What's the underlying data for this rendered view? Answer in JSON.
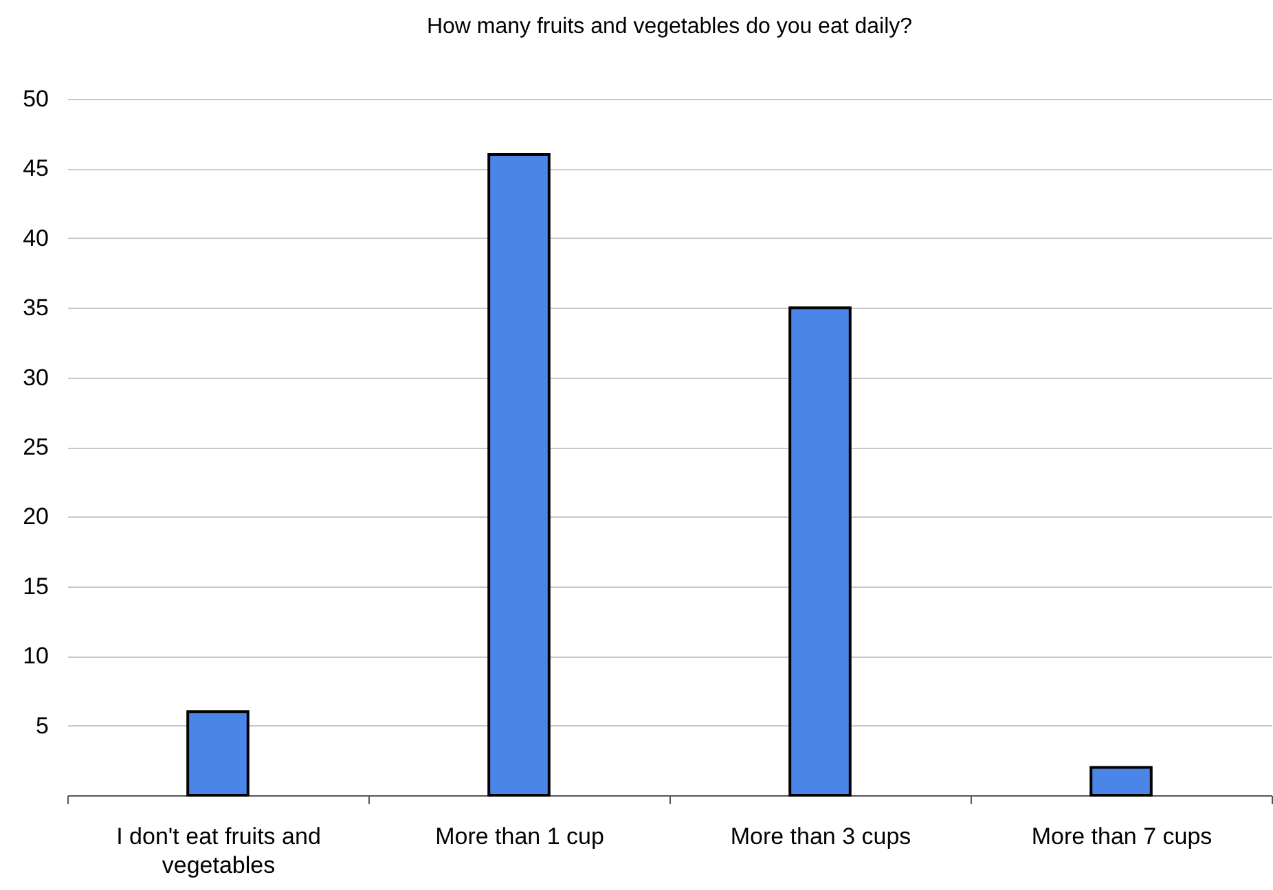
{
  "chart_data": {
    "type": "bar",
    "title": "How many fruits and vegetables do you eat daily?",
    "categories": [
      "I don't eat fruits and vegetables",
      "More than 1 cup",
      "More than 3 cups",
      "More than 7 cups"
    ],
    "values": [
      6,
      46,
      35,
      2
    ],
    "color": "#4a86e8",
    "ylim": [
      0,
      50
    ],
    "yticks": [
      5,
      10,
      15,
      20,
      25,
      30,
      35,
      40,
      45,
      50
    ],
    "grid": "y"
  }
}
